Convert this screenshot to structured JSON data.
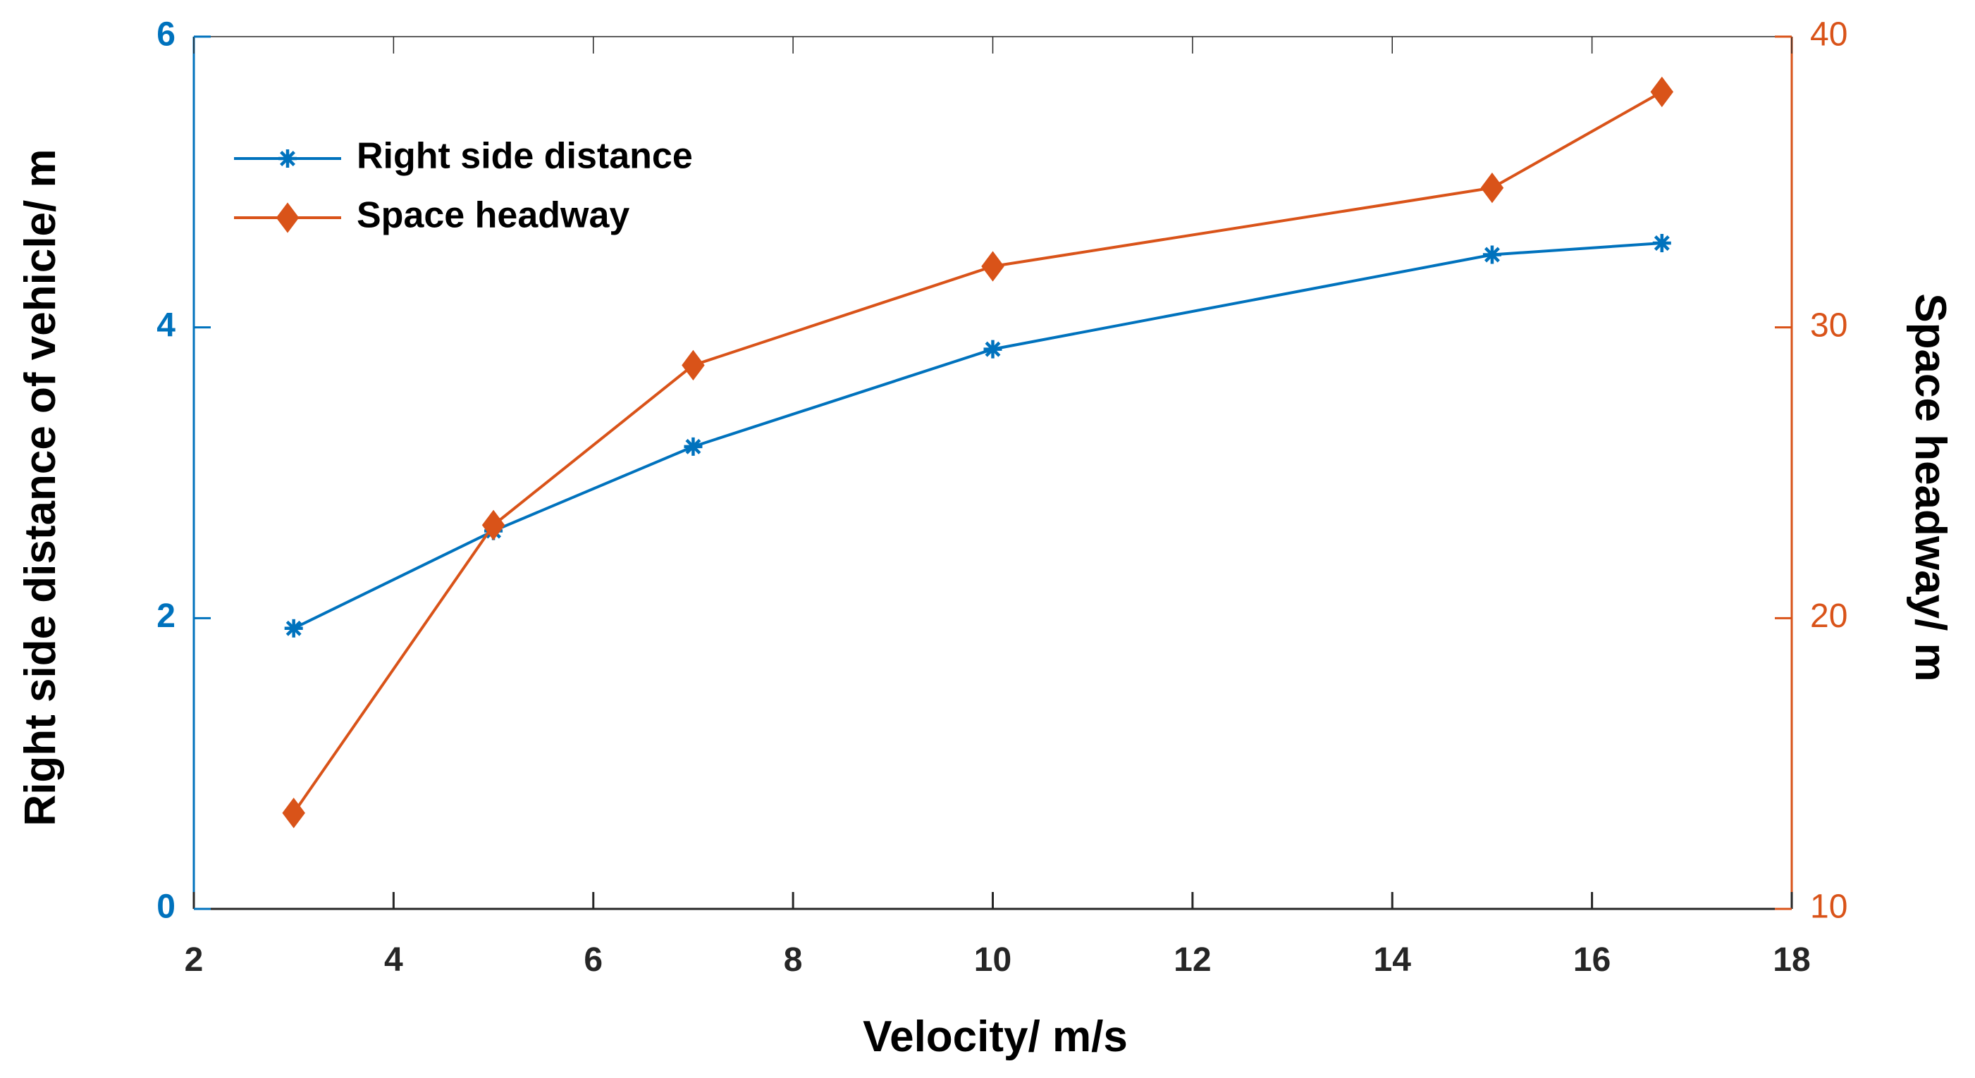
{
  "chart_data": {
    "type": "line",
    "title": "",
    "xlabel": "Velocity/ m/s",
    "ylabel_left": "Right side distance of vehicle/ m",
    "ylabel_right": "Space headway/ m",
    "xlim": [
      2,
      18
    ],
    "ylim_left": [
      0,
      6
    ],
    "ylim_right": [
      10,
      40
    ],
    "xticks": [
      2,
      4,
      6,
      8,
      10,
      12,
      14,
      16,
      18
    ],
    "yticks_left": [
      0,
      2,
      4,
      6
    ],
    "yticks_right": [
      10,
      20,
      30,
      40
    ],
    "grid": false,
    "legend_position": "top-left",
    "colors": {
      "left_axis": "#0072BD",
      "right_axis": "#D95319",
      "x_axis": "#262626"
    },
    "series": [
      {
        "name": "Right side distance",
        "axis": "left",
        "marker": "asterisk",
        "color": "#0072BD",
        "x": [
          3,
          5,
          7,
          10,
          15,
          16.7
        ],
        "values": [
          1.93,
          2.6,
          3.18,
          3.85,
          4.5,
          4.58
        ]
      },
      {
        "name": "Space headway",
        "axis": "right",
        "marker": "diamond",
        "color": "#D95319",
        "x": [
          3,
          5,
          7,
          10,
          15,
          16.7
        ],
        "values": [
          13.3,
          23.2,
          28.7,
          32.1,
          34.8,
          38.1
        ]
      }
    ]
  }
}
